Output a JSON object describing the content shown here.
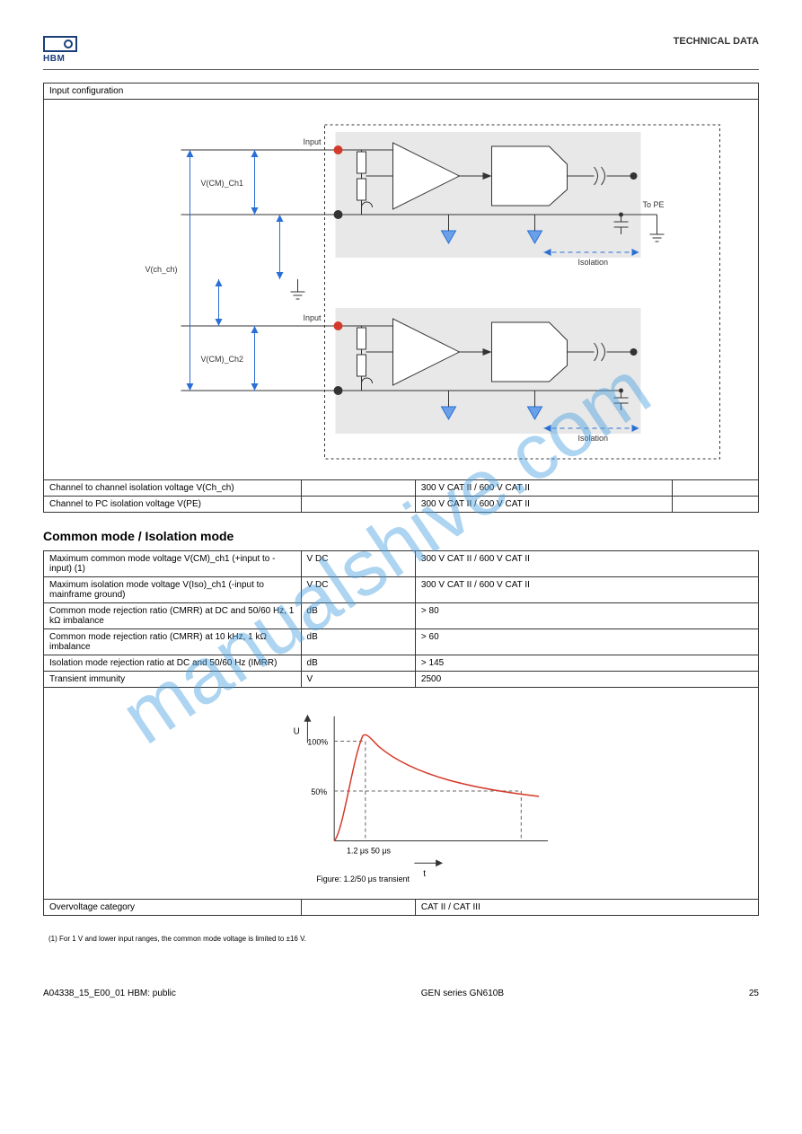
{
  "logo_text": "HBM",
  "chapter": "TECHNICAL DATA",
  "input_config_header": "Input configuration",
  "diagram": {
    "labels": {
      "to_pe": "To PE",
      "isolation": "Isolation",
      "input": "Input"
    },
    "annot": {
      "vch_ch": "V(ch_ch)",
      "vcm_ch1": "V(CM)_Ch1",
      "vcm_ch2": "V(CM)_Ch2"
    },
    "colors": {
      "box_bg": "#e8e8e8",
      "outline": "#333333",
      "arrow": "#2a6fd6",
      "hot": "#d43a2a",
      "ground_tri_fill": "#6aa0e8"
    }
  },
  "tbl1": {
    "rows": [
      {
        "label": "Channel to channel isolation voltage V(Ch_ch)",
        "c2": "",
        "c3": "300 V CAT II / 600 V CAT II",
        "c4": ""
      },
      {
        "label": "Channel to PC isolation voltage V(PE)",
        "c2": "",
        "c3": "300 V CAT II / 600 V CAT II",
        "c4": ""
      }
    ]
  },
  "section_title": "Common mode / Isolation mode",
  "tbl2": {
    "header": [
      "",
      "",
      ""
    ],
    "rows": [
      {
        "label": "Maximum common mode voltage V(CM)_ch1 (+input to -input) (1)",
        "c2": "V DC",
        "c3": "300 V CAT II / 600 V CAT II"
      },
      {
        "label": "Maximum isolation mode voltage V(Iso)_ch1 (-input to mainframe ground)",
        "c2": "V DC",
        "c3": "300 V CAT II / 600 V CAT II"
      },
      {
        "label": "Common mode rejection ratio (CMRR) at DC and 50/60 Hz, 1 kΩ imbalance",
        "c2": "dB",
        "c3": "> 80"
      },
      {
        "label": "Common mode rejection ratio (CMRR) at 10 kHz, 1 kΩ imbalance",
        "c2": "dB",
        "c3": "> 60"
      },
      {
        "label": "Isolation mode rejection ratio at DC and 50/60 Hz (IMRR)",
        "c2": "dB",
        "c3": "> 145"
      },
      {
        "label": "Transient immunity",
        "c2": "V",
        "c3": "2500"
      }
    ],
    "overvoltage_row": {
      "label": "Overvoltage category",
      "c2": "",
      "c3": "CAT II / CAT III"
    },
    "note": "(1) For 1 V and lower input ranges, the common mode voltage is limited to ±16 V."
  },
  "transient_chart": {
    "y_label": "U",
    "x_label": "t",
    "y_ticks": [
      "100%",
      "50%"
    ],
    "x_ticks_text": "1.2 μs               50 μs",
    "caption": "Figure: 1.2/50 μs transient",
    "curve_color": "#d43a2a",
    "grid_dash": "4,3",
    "axis_color": "#333333"
  },
  "footer": {
    "doc": "A04338_15_E00_01   HBM: public",
    "product": "GEN series GN610B",
    "page": "25"
  },
  "watermark_text": "manualshive.com",
  "watermark_color": "#4aa0e0",
  "watermark_opacity": 0.45
}
